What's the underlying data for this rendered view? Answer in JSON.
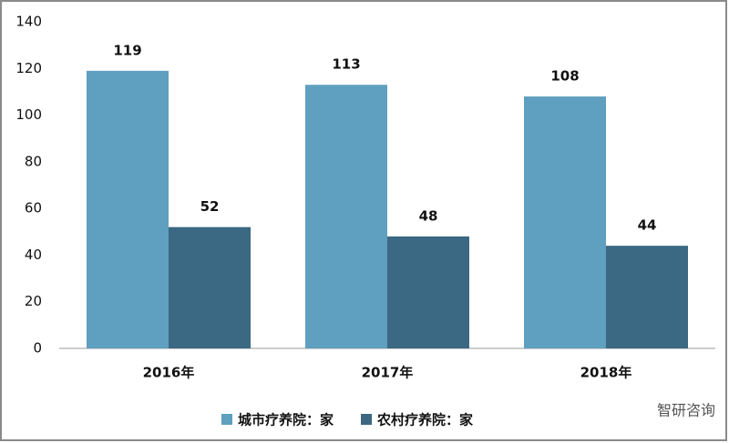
{
  "chart_data": {
    "type": "bar",
    "categories": [
      "2016年",
      "2017年",
      "2018年"
    ],
    "series": [
      {
        "name": "城市疗养院：家",
        "color": "#5f9fbf",
        "values": [
          119,
          113,
          108
        ]
      },
      {
        "name": "农村疗养院：家",
        "color": "#3b6882",
        "values": [
          52,
          48,
          44
        ]
      }
    ],
    "ylim": [
      0,
      140
    ],
    "yticks": [
      0,
      20,
      40,
      60,
      80,
      100,
      120,
      140
    ],
    "grid": false,
    "legend": "bottom"
  },
  "watermark": "智研咨询"
}
